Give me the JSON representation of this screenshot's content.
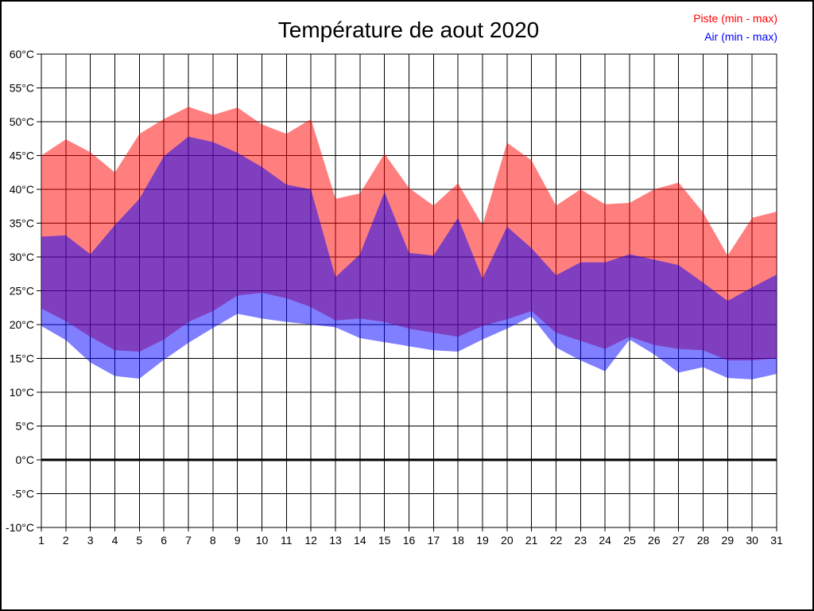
{
  "title": "Température de aout 2020",
  "legend": {
    "piste_label": "Piste (min - max)",
    "air_label": "Air (min - max)"
  },
  "colors": {
    "piste": "#ff0000",
    "air": "#0000ff",
    "piste_band_fill": "rgba(255,0,0,0.5)",
    "air_band_fill": "rgba(0,0,255,0.5)",
    "grid": "#000000",
    "zero_line": "#000000",
    "background": "#ffffff"
  },
  "chart_data": {
    "type": "area",
    "title": "Température de aout 2020",
    "x": [
      1,
      2,
      3,
      4,
      5,
      6,
      7,
      8,
      9,
      10,
      11,
      12,
      13,
      14,
      15,
      16,
      17,
      18,
      19,
      20,
      21,
      22,
      23,
      24,
      25,
      26,
      27,
      28,
      29,
      30,
      31
    ],
    "series": [
      {
        "name": "Piste max",
        "color": "#ff0000",
        "values": [
          45.0,
          47.4,
          45.5,
          42.5,
          48.2,
          50.4,
          52.2,
          51.0,
          52.1,
          49.6,
          48.2,
          50.4,
          38.6,
          39.4,
          45.3,
          40.2,
          37.6,
          40.9,
          34.7,
          46.9,
          44.3,
          37.6,
          40.0,
          37.8,
          38.0,
          40.0,
          41.0,
          36.6,
          30.2,
          35.8,
          36.7
        ]
      },
      {
        "name": "Piste min",
        "color": "#ff0000",
        "values": [
          22.4,
          20.5,
          18.2,
          16.2,
          16.0,
          17.8,
          20.4,
          22.0,
          24.3,
          24.7,
          23.9,
          22.6,
          20.6,
          20.9,
          20.4,
          19.4,
          18.8,
          18.2,
          19.8,
          20.8,
          22.0,
          18.8,
          17.6,
          16.4,
          18.2,
          17.0,
          16.4,
          16.2,
          14.7,
          14.7,
          15.0
        ]
      },
      {
        "name": "Air max",
        "color": "#0000ff",
        "values": [
          33.0,
          33.2,
          30.4,
          34.7,
          38.6,
          44.9,
          47.8,
          47.0,
          45.4,
          43.3,
          40.7,
          40.0,
          27.0,
          30.4,
          39.6,
          30.6,
          30.2,
          35.8,
          26.8,
          34.5,
          31.3,
          27.3,
          29.2,
          29.2,
          30.4,
          29.6,
          28.8,
          26.2,
          23.5,
          25.5,
          27.4
        ]
      },
      {
        "name": "Air min",
        "color": "#0000ff",
        "values": [
          19.8,
          17.7,
          14.4,
          12.4,
          12.0,
          14.8,
          17.3,
          19.5,
          21.6,
          20.9,
          20.4,
          20.0,
          19.6,
          18.0,
          17.4,
          16.8,
          16.2,
          16.0,
          17.8,
          19.4,
          21.2,
          16.6,
          14.7,
          13.1,
          17.8,
          15.6,
          12.9,
          13.7,
          12.1,
          11.9,
          12.7
        ]
      }
    ],
    "bands": [
      {
        "name": "Piste (min - max)",
        "max_series": 0,
        "min_series": 1,
        "fill": "rgba(255,0,0,0.5)"
      },
      {
        "name": "Air (min - max)",
        "max_series": 2,
        "min_series": 3,
        "fill": "rgba(0,0,255,0.5)"
      }
    ],
    "ylim": [
      -10,
      60
    ],
    "y_tick_step": 5,
    "y_tick_labels": [
      "60°C",
      "55°C",
      "50°C",
      "45°C",
      "40°C",
      "35°C",
      "30°C",
      "25°C",
      "20°C",
      "15°C",
      "10°C",
      "5°C",
      "0°C",
      "-5°C",
      "-10°C"
    ],
    "x_tick_labels": [
      "1",
      "2",
      "3",
      "4",
      "5",
      "6",
      "7",
      "8",
      "9",
      "10",
      "11",
      "12",
      "13",
      "14",
      "15",
      "16",
      "17",
      "18",
      "19",
      "20",
      "21",
      "22",
      "23",
      "24",
      "25",
      "26",
      "27",
      "28",
      "29",
      "30",
      "31"
    ],
    "grid": true,
    "zero_line": true,
    "legend_position": "top-right"
  }
}
